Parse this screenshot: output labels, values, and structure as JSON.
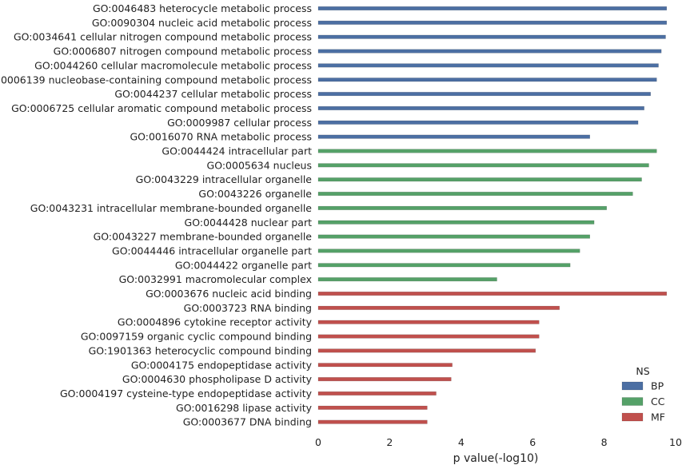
{
  "chart_data": {
    "type": "bar",
    "orientation": "horizontal",
    "xlabel": "p value(-log10)",
    "xlim": [
      0,
      10
    ],
    "xticks": [
      "0",
      "2",
      "4",
      "6",
      "8",
      "10"
    ],
    "grid": false,
    "legend": {
      "title": "NS",
      "placement": "bottom-right",
      "entries": [
        {
          "name": "BP",
          "color": "#4c6fa3"
        },
        {
          "name": "CC",
          "color": "#55a168"
        },
        {
          "name": "MF",
          "color": "#c0504d"
        }
      ]
    },
    "categories": [
      {
        "label": "GO:0046483 heterocycle metabolic process",
        "ns": "BP",
        "value": 9.75
      },
      {
        "label": "GO:0090304 nucleic acid metabolic process",
        "ns": "BP",
        "value": 9.75
      },
      {
        "label": "GO:0034641 cellular nitrogen compound metabolic process",
        "ns": "BP",
        "value": 9.72
      },
      {
        "label": "GO:0006807 nitrogen compound metabolic process",
        "ns": "BP",
        "value": 9.6
      },
      {
        "label": "GO:0044260 cellular macromolecule metabolic process",
        "ns": "BP",
        "value": 9.52
      },
      {
        "label": "GO:0006139 nucleobase-containing compound metabolic process",
        "ns": "BP",
        "value": 9.47
      },
      {
        "label": "GO:0044237 cellular metabolic process",
        "ns": "BP",
        "value": 9.3
      },
      {
        "label": "GO:0006725 cellular aromatic compound metabolic process",
        "ns": "BP",
        "value": 9.12
      },
      {
        "label": "GO:0009987 cellular process",
        "ns": "BP",
        "value": 8.95
      },
      {
        "label": "GO:0016070 RNA metabolic process",
        "ns": "BP",
        "value": 7.6
      },
      {
        "label": "GO:0044424 intracellular part",
        "ns": "CC",
        "value": 9.47
      },
      {
        "label": "GO:0005634 nucleus",
        "ns": "CC",
        "value": 9.25
      },
      {
        "label": "GO:0043229 intracellular organelle",
        "ns": "CC",
        "value": 9.05
      },
      {
        "label": "GO:0043226 organelle",
        "ns": "CC",
        "value": 8.8
      },
      {
        "label": "GO:0043231 intracellular membrane-bounded organelle",
        "ns": "CC",
        "value": 8.07
      },
      {
        "label": "GO:0044428 nuclear part",
        "ns": "CC",
        "value": 7.72
      },
      {
        "label": "GO:0043227 membrane-bounded organelle",
        "ns": "CC",
        "value": 7.6
      },
      {
        "label": "GO:0044446 intracellular organelle part",
        "ns": "CC",
        "value": 7.32
      },
      {
        "label": "GO:0044422 organelle part",
        "ns": "CC",
        "value": 7.05
      },
      {
        "label": "GO:0032991 macromolecular complex",
        "ns": "CC",
        "value": 5.0
      },
      {
        "label": "GO:0003676 nucleic acid binding",
        "ns": "MF",
        "value": 9.75
      },
      {
        "label": "GO:0003723 RNA binding",
        "ns": "MF",
        "value": 6.75
      },
      {
        "label": "GO:0004896 cytokine receptor activity",
        "ns": "MF",
        "value": 6.18
      },
      {
        "label": "GO:0097159 organic cyclic compound binding",
        "ns": "MF",
        "value": 6.18
      },
      {
        "label": "GO:1901363 heterocyclic compound binding",
        "ns": "MF",
        "value": 6.08
      },
      {
        "label": "GO:0004175 endopeptidase activity",
        "ns": "MF",
        "value": 3.75
      },
      {
        "label": "GO:0004630 phospholipase D activity",
        "ns": "MF",
        "value": 3.72
      },
      {
        "label": "GO:0004197 cysteine-type endopeptidase activity",
        "ns": "MF",
        "value": 3.3
      },
      {
        "label": "GO:0016298 lipase activity",
        "ns": "MF",
        "value": 3.05
      },
      {
        "label": "GO:0003677 DNA binding",
        "ns": "MF",
        "value": 3.05
      }
    ]
  }
}
